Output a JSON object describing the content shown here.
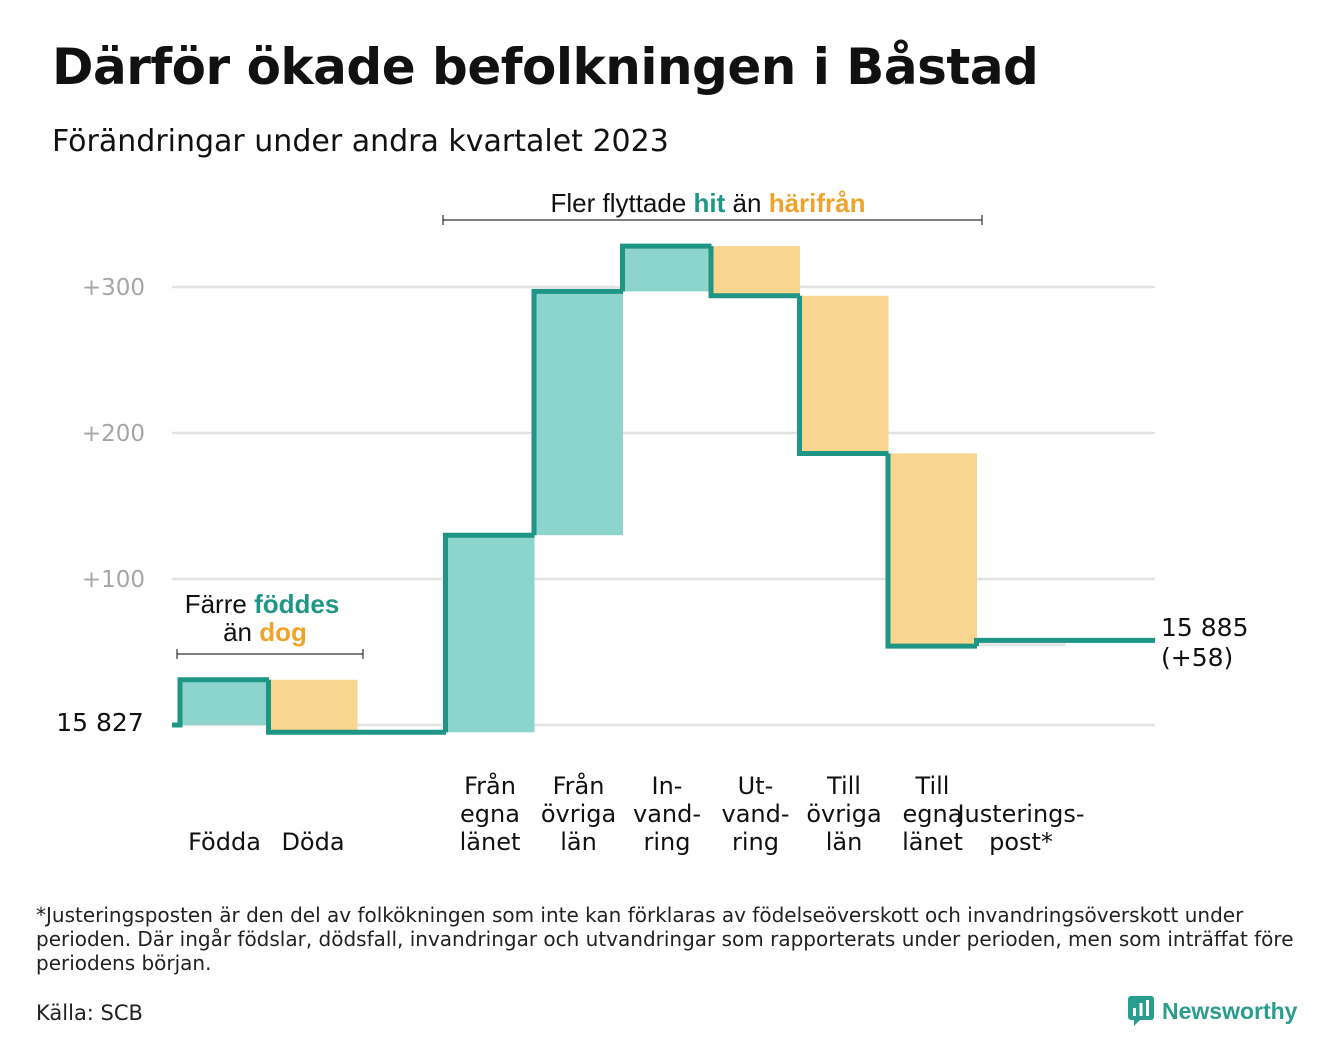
{
  "title": "Därför ökade befolkningen i Båstad",
  "subtitle": "Förändringar under andra kvartalet 2023",
  "annotations": {
    "births_deaths": {
      "prefix": "Färre",
      "highlight1": "föddes",
      "middle": "än",
      "highlight2": "dog"
    },
    "migration": {
      "prefix": "Fler flyttade",
      "highlight1": "hit",
      "middle": "än",
      "highlight2": "härifrån"
    }
  },
  "start_label": "15 827",
  "end_label_line1": "15 885",
  "end_label_line2": "(+58)",
  "colors": {
    "increase": "#8dd5cc",
    "decrease": "#f9d68f",
    "line": "#1f9585",
    "grid": "#e3e3e3",
    "axis_text": "#a6a6a6",
    "hit": "#1f9585",
    "harifran": "#f0a32b"
  },
  "chart_data": {
    "type": "waterfall",
    "title": "Därför ökade befolkningen i Båstad",
    "subtitle": "Förändringar under andra kvartalet 2023",
    "baseline": 15827,
    "end_value": 15885,
    "y_ticks": [
      "+100",
      "+200",
      "+300"
    ],
    "y_tick_values": [
      100,
      200,
      300
    ],
    "y_range": [
      -5,
      330
    ],
    "grid": true,
    "steps": [
      {
        "label": [
          "Födda"
        ],
        "value": 31,
        "kind": "increase"
      },
      {
        "label": [
          "Döda"
        ],
        "value": -36,
        "kind": "decrease"
      },
      {
        "label": [],
        "value": 0,
        "kind": "gap"
      },
      {
        "label": [
          "Från",
          "egna",
          "länet"
        ],
        "value": 135,
        "kind": "increase"
      },
      {
        "label": [
          "Från",
          "övriga",
          "län"
        ],
        "value": 167,
        "kind": "increase"
      },
      {
        "label": [
          "In-",
          "vand-",
          "ring"
        ],
        "value": 31,
        "kind": "increase"
      },
      {
        "label": [
          "Ut-",
          "vand-",
          "ring"
        ],
        "value": -34,
        "kind": "decrease"
      },
      {
        "label": [
          "Till",
          "övriga",
          "län"
        ],
        "value": -108,
        "kind": "decrease"
      },
      {
        "label": [
          "Till",
          "egna",
          "länet"
        ],
        "value": -132,
        "kind": "decrease"
      },
      {
        "label": [
          "Justerings-",
          "post*"
        ],
        "value": 4,
        "kind": "adjustment"
      }
    ]
  },
  "footnote": "*Justeringsposten är den del av folkökningen som inte kan förklaras av födelseöverskott och invandringsöverskott under perioden. Där ingår födslar, dödsfall, invandringar och utvandringar som rapporterats under perioden, men som inträffat före periodens början.",
  "source": "Källa: SCB",
  "logo": {
    "text": "Newsworthy",
    "icon": "newsworthy-chart-icon"
  }
}
